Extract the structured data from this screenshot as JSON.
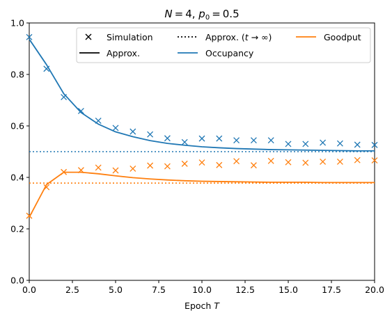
{
  "chart_data": {
    "type": "line",
    "title": "N = 4, p₀ = 0.5",
    "title_parts": {
      "n_label": "N",
      "n_value": "4",
      "p_label": "p",
      "p_sub": "0",
      "p_value": "0.5"
    },
    "xlabel": "Epoch T",
    "xlabel_parts": {
      "text": "Epoch ",
      "var": "T"
    },
    "ylabel": "",
    "xlim": [
      0.0,
      20.0
    ],
    "ylim": [
      0.0,
      1.0
    ],
    "x_ticks": [
      "0.0",
      "2.5",
      "5.0",
      "7.5",
      "10.0",
      "12.5",
      "15.0",
      "17.5",
      "20.0"
    ],
    "y_ticks": [
      "0.0",
      "0.2",
      "0.4",
      "0.6",
      "0.8",
      "1.0"
    ],
    "grid": false,
    "legend": {
      "placement": "top-right",
      "columns": 3,
      "entries": [
        {
          "label": "Simulation",
          "style": "marker-x",
          "color": "#000000"
        },
        {
          "label": "Approx.",
          "style": "solid",
          "color": "#000000"
        },
        {
          "label": "Approx. (t → ∞)",
          "style": "dotted",
          "color": "#000000"
        },
        {
          "label": "Occupancy",
          "style": "solid",
          "color": "#1f77b4"
        },
        {
          "label": "Goodput",
          "style": "solid",
          "color": "#ff7f0e"
        }
      ]
    },
    "series": [
      {
        "name": "Occupancy",
        "color": "#1f77b4",
        "simulation": {
          "x": [
            0,
            1,
            2,
            3,
            4,
            5,
            6,
            7,
            8,
            9,
            10,
            11,
            12,
            13,
            14,
            15,
            16,
            17,
            18,
            19,
            20
          ],
          "y": [
            0.945,
            0.822,
            0.712,
            0.658,
            0.62,
            0.592,
            0.578,
            0.567,
            0.552,
            0.537,
            0.551,
            0.551,
            0.544,
            0.544,
            0.544,
            0.53,
            0.53,
            0.535,
            0.532,
            0.527,
            0.526
          ]
        },
        "approx": {
          "x": [
            0,
            1,
            2,
            3,
            4,
            5,
            6,
            7,
            8,
            9,
            10,
            11,
            12,
            13,
            14,
            15,
            16,
            17,
            18,
            19,
            20
          ],
          "y": [
            0.937,
            0.838,
            0.725,
            0.652,
            0.607,
            0.577,
            0.558,
            0.543,
            0.532,
            0.525,
            0.519,
            0.515,
            0.512,
            0.51,
            0.508,
            0.507,
            0.506,
            0.505,
            0.504,
            0.503,
            0.503
          ]
        },
        "asymptote": 0.5
      },
      {
        "name": "Goodput",
        "color": "#ff7f0e",
        "simulation": {
          "x": [
            0,
            1,
            2,
            3,
            4,
            5,
            6,
            7,
            8,
            9,
            10,
            11,
            12,
            13,
            14,
            15,
            16,
            17,
            18,
            19,
            20
          ],
          "y": [
            0.251,
            0.362,
            0.421,
            0.428,
            0.438,
            0.427,
            0.434,
            0.446,
            0.443,
            0.453,
            0.458,
            0.448,
            0.463,
            0.447,
            0.464,
            0.459,
            0.457,
            0.461,
            0.461,
            0.467,
            0.466
          ]
        },
        "approx": {
          "x": [
            0,
            1,
            2,
            3,
            4,
            5,
            6,
            7,
            8,
            9,
            10,
            11,
            12,
            13,
            14,
            15,
            16,
            17,
            18,
            19,
            20
          ],
          "y": [
            0.245,
            0.372,
            0.42,
            0.42,
            0.414,
            0.406,
            0.399,
            0.394,
            0.39,
            0.387,
            0.385,
            0.384,
            0.383,
            0.382,
            0.381,
            0.381,
            0.381,
            0.38,
            0.38,
            0.38,
            0.38
          ]
        },
        "asymptote": 0.378
      }
    ]
  }
}
